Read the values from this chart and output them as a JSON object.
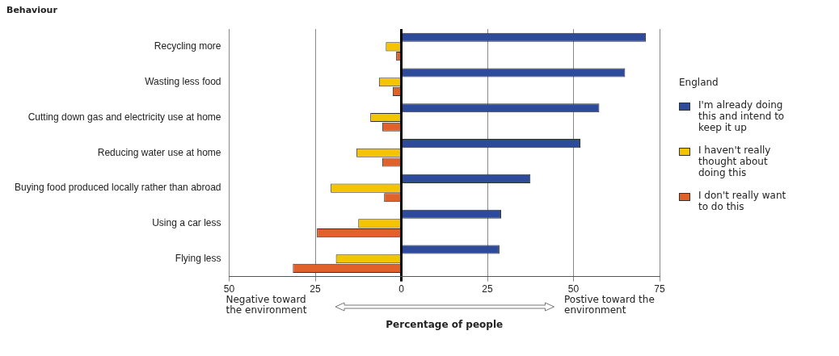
{
  "chart_data": {
    "type": "bar",
    "orientation": "horizontal",
    "ylabel": "Behaviour",
    "xlabel": "Percentage of people",
    "legend_title": "England",
    "categories": [
      "Recycling more",
      "Wasting less food",
      "Cutting down gas and electricity use at home",
      "Reducing water use at home",
      "Buying food produced locally rather than abroad",
      "Using a car less",
      "Flying less"
    ],
    "series": [
      {
        "name": "I'm already doing this and intend to keep it up",
        "color": "#2e4a9a",
        "values": [
          71,
          65,
          57.5,
          52,
          37.5,
          29,
          28.5
        ]
      },
      {
        "name": "I haven't really thought about doing this",
        "color": "#f5c400",
        "values": [
          -4.5,
          -6.5,
          -9,
          -13,
          -20.5,
          -12.5,
          -19
        ]
      },
      {
        "name": "I don't really want to do this",
        "color": "#e0622a",
        "values": [
          -1.5,
          -2.5,
          -5.5,
          -5.5,
          -5,
          -24.5,
          -31.5
        ]
      }
    ],
    "xlim": [
      -50,
      75
    ],
    "xticks": [
      {
        "value": -50,
        "label": "50"
      },
      {
        "value": -25,
        "label": "25"
      },
      0,
      25,
      50,
      75
    ],
    "grid": "x",
    "legend": "right",
    "annotations": [
      "Negative toward the environment",
      "Postive toward the environment"
    ]
  }
}
